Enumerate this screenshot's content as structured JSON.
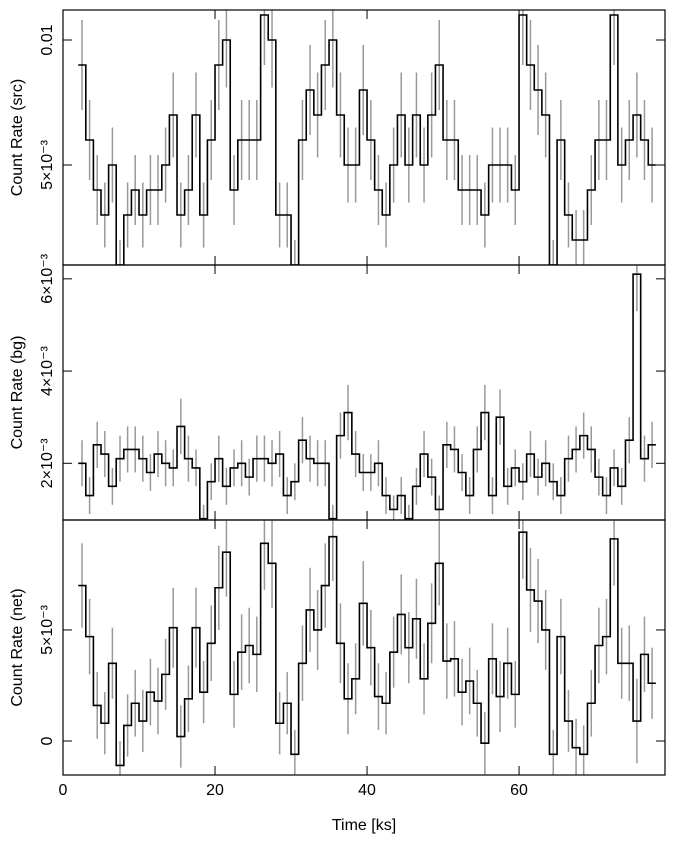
{
  "chart_data": [
    {
      "type": "step",
      "ylabel": "Count Rate (src)",
      "xlim": [
        0,
        79.2
      ],
      "xticks": [
        0,
        20,
        40,
        60
      ],
      "ylim": [
        0.001,
        0.0112
      ],
      "yticks": [
        {
          "value": 0.005,
          "label": "5×10⁻³"
        },
        0.01
      ],
      "line_color": "#000000",
      "error_color": "#999999",
      "x": [
        2.5,
        3.5,
        4.5,
        5.5,
        6.5,
        7.5,
        8.5,
        9.5,
        10.5,
        11.5,
        12.5,
        13.5,
        14.5,
        15.5,
        16.5,
        17.5,
        18.5,
        19.5,
        20.5,
        21.5,
        22.5,
        23.5,
        24.5,
        25.5,
        26.5,
        27.5,
        28.5,
        29.5,
        30.5,
        31.5,
        32.5,
        33.5,
        34.5,
        35.5,
        36.5,
        37.5,
        38.5,
        39.5,
        40.5,
        41.5,
        42.5,
        43.5,
        44.5,
        45.5,
        46.5,
        47.5,
        48.5,
        49.5,
        50.5,
        51.5,
        52.5,
        53.5,
        54.5,
        55.5,
        56.5,
        57.5,
        58.5,
        59.5,
        60.5,
        61.5,
        62.5,
        63.5,
        64.5,
        65.5,
        66.5,
        67.5,
        68.5,
        69.5,
        70.5,
        71.5,
        72.5,
        73.5,
        74.5,
        75.5,
        76.5,
        77.5
      ],
      "values": [
        0.009,
        0.006,
        0.004,
        0.003,
        0.005,
        0.001,
        0.003,
        0.004,
        0.003,
        0.004,
        0.004,
        0.005,
        0.007,
        0.003,
        0.004,
        0.007,
        0.003,
        0.006,
        0.009,
        0.01,
        0.004,
        0.006,
        0.006,
        0.006,
        0.011,
        0.01,
        0.003,
        0.003,
        0.001,
        0.006,
        0.008,
        0.007,
        0.009,
        0.01,
        0.007,
        0.005,
        0.005,
        0.008,
        0.006,
        0.004,
        0.003,
        0.005,
        0.007,
        0.005,
        0.007,
        0.005,
        0.007,
        0.009,
        0.006,
        0.006,
        0.004,
        0.004,
        0.004,
        0.003,
        0.005,
        0.005,
        0.005,
        0.004,
        0.011,
        0.009,
        0.008,
        0.007,
        0.001,
        0.006,
        0.003,
        0.002,
        0.002,
        0.004,
        0.006,
        0.006,
        0.011,
        0.005,
        0.006,
        0.007,
        0.006,
        0.005
      ],
      "errors": [
        0.0018,
        0.0016,
        0.0014,
        0.0013,
        0.0015,
        0.001,
        0.0013,
        0.0014,
        0.0013,
        0.0014,
        0.0014,
        0.0015,
        0.0017,
        0.0013,
        0.0014,
        0.0017,
        0.0013,
        0.0016,
        0.0018,
        0.0019,
        0.0014,
        0.0016,
        0.0016,
        0.0016,
        0.002,
        0.0019,
        0.0013,
        0.0013,
        0.001,
        0.0016,
        0.0018,
        0.0017,
        0.0018,
        0.0019,
        0.0017,
        0.0015,
        0.0015,
        0.0018,
        0.0016,
        0.0014,
        0.0013,
        0.0015,
        0.0017,
        0.0015,
        0.0017,
        0.0015,
        0.0017,
        0.0018,
        0.0016,
        0.0016,
        0.0014,
        0.0014,
        0.0014,
        0.0013,
        0.0015,
        0.0015,
        0.0015,
        0.0014,
        0.002,
        0.0018,
        0.0018,
        0.0017,
        0.001,
        0.0016,
        0.0013,
        0.0012,
        0.0012,
        0.0014,
        0.0016,
        0.0016,
        0.002,
        0.0015,
        0.0016,
        0.0017,
        0.0016,
        0.0015
      ]
    },
    {
      "type": "step",
      "ylabel": "Count Rate (bg)",
      "xlim": [
        0,
        79.2
      ],
      "xticks": [
        0,
        20,
        40,
        60
      ],
      "ylim": [
        0.00077,
        0.0063
      ],
      "yticks": [
        {
          "value": 0.002,
          "label": "2×10⁻³"
        },
        {
          "value": 0.004,
          "label": "4×10⁻³"
        },
        {
          "value": 0.006,
          "label": "6×10⁻³"
        }
      ],
      "line_color": "#000000",
      "error_color": "#999999",
      "x": [
        2.5,
        3.5,
        4.5,
        5.5,
        6.5,
        7.5,
        8.5,
        9.5,
        10.5,
        11.5,
        12.5,
        13.5,
        14.5,
        15.5,
        16.5,
        17.5,
        18.5,
        19.5,
        20.5,
        21.5,
        22.5,
        23.5,
        24.5,
        25.5,
        26.5,
        27.5,
        28.5,
        29.5,
        30.5,
        31.5,
        32.5,
        33.5,
        34.5,
        35.5,
        36.5,
        37.5,
        38.5,
        39.5,
        40.5,
        41.5,
        42.5,
        43.5,
        44.5,
        45.5,
        46.5,
        47.5,
        48.5,
        49.5,
        50.5,
        51.5,
        52.5,
        53.5,
        54.5,
        55.5,
        56.5,
        57.5,
        58.5,
        59.5,
        60.5,
        61.5,
        62.5,
        63.5,
        64.5,
        65.5,
        66.5,
        67.5,
        68.5,
        69.5,
        70.5,
        71.5,
        72.5,
        73.5,
        74.5,
        75.5,
        76.5,
        77.5
      ],
      "values": [
        0.002,
        0.0013,
        0.0024,
        0.0022,
        0.0015,
        0.0021,
        0.0023,
        0.0023,
        0.0021,
        0.0018,
        0.0022,
        0.002,
        0.0019,
        0.0028,
        0.0021,
        0.0019,
        0.0008,
        0.0016,
        0.0021,
        0.0015,
        0.0019,
        0.002,
        0.0017,
        0.0021,
        0.0021,
        0.002,
        0.0022,
        0.0013,
        0.0016,
        0.0025,
        0.0021,
        0.002,
        0.002,
        0.0008,
        0.0026,
        0.0031,
        0.0022,
        0.0018,
        0.0018,
        0.002,
        0.0013,
        0.001,
        0.0013,
        0.0008,
        0.0015,
        0.0022,
        0.0017,
        0.001,
        0.0024,
        0.0023,
        0.0018,
        0.0013,
        0.0023,
        0.0031,
        0.0013,
        0.003,
        0.0015,
        0.0019,
        0.0016,
        0.0022,
        0.0017,
        0.002,
        0.0016,
        0.0013,
        0.0021,
        0.0023,
        0.0026,
        0.0023,
        0.0017,
        0.0013,
        0.0019,
        0.0015,
        0.0025,
        0.0061,
        0.0021,
        0.0024
      ],
      "errors": [
        0.0005,
        0.0004,
        0.0005,
        0.0005,
        0.0004,
        0.0005,
        0.0005,
        0.0005,
        0.0005,
        0.0004,
        0.0005,
        0.0005,
        0.0004,
        0.0006,
        0.0005,
        0.0004,
        0.0003,
        0.0004,
        0.0005,
        0.0004,
        0.0004,
        0.0005,
        0.0004,
        0.0005,
        0.0005,
        0.0005,
        0.0005,
        0.0004,
        0.0004,
        0.0005,
        0.0005,
        0.0005,
        0.0005,
        0.0003,
        0.0005,
        0.0006,
        0.0005,
        0.0004,
        0.0004,
        0.0005,
        0.0004,
        0.0003,
        0.0004,
        0.0003,
        0.0004,
        0.0005,
        0.0004,
        0.0003,
        0.0005,
        0.0005,
        0.0004,
        0.0004,
        0.0005,
        0.0006,
        0.0004,
        0.0006,
        0.0004,
        0.0004,
        0.0004,
        0.0005,
        0.0004,
        0.0005,
        0.0004,
        0.0004,
        0.0005,
        0.0005,
        0.0005,
        0.0005,
        0.0004,
        0.0004,
        0.0004,
        0.0004,
        0.0005,
        0.0008,
        0.0005,
        0.0005
      ]
    },
    {
      "type": "step",
      "ylabel": "Count Rate (net)",
      "xlabel": "Time [ks]",
      "xlim": [
        0,
        79.2
      ],
      "xticks": [
        0,
        20,
        40,
        60
      ],
      "ylim": [
        -0.00153,
        0.00995
      ],
      "yticks": [
        0,
        {
          "value": 0.005,
          "label": "5×10⁻³"
        }
      ],
      "line_color": "#000000",
      "error_color": "#999999",
      "x": [
        2.5,
        3.5,
        4.5,
        5.5,
        6.5,
        7.5,
        8.5,
        9.5,
        10.5,
        11.5,
        12.5,
        13.5,
        14.5,
        15.5,
        16.5,
        17.5,
        18.5,
        19.5,
        20.5,
        21.5,
        22.5,
        23.5,
        24.5,
        25.5,
        26.5,
        27.5,
        28.5,
        29.5,
        30.5,
        31.5,
        32.5,
        33.5,
        34.5,
        35.5,
        36.5,
        37.5,
        38.5,
        39.5,
        40.5,
        41.5,
        42.5,
        43.5,
        44.5,
        45.5,
        46.5,
        47.5,
        48.5,
        49.5,
        50.5,
        51.5,
        52.5,
        53.5,
        54.5,
        55.5,
        56.5,
        57.5,
        58.5,
        59.5,
        60.5,
        61.5,
        62.5,
        63.5,
        64.5,
        65.5,
        66.5,
        67.5,
        68.5,
        69.5,
        70.5,
        71.5,
        72.5,
        73.5,
        74.5,
        75.5,
        76.5,
        77.5
      ],
      "values": [
        0.007,
        0.0047,
        0.0016,
        0.0008,
        0.0035,
        -0.0011,
        0.0007,
        0.0017,
        0.0009,
        0.0022,
        0.0018,
        0.003,
        0.0051,
        0.0002,
        0.0019,
        0.0051,
        0.0022,
        0.0044,
        0.0069,
        0.0085,
        0.0021,
        0.004,
        0.0043,
        0.0039,
        0.0089,
        0.008,
        0.0008,
        0.0017,
        -0.0006,
        0.0035,
        0.0059,
        0.005,
        0.007,
        0.0092,
        0.0044,
        0.0019,
        0.0028,
        0.0062,
        0.0042,
        0.002,
        0.0017,
        0.004,
        0.0057,
        0.0042,
        0.0055,
        0.0028,
        0.0053,
        0.008,
        0.0036,
        0.0037,
        0.0022,
        0.0027,
        0.0017,
        -0.0001,
        0.0037,
        0.002,
        0.0035,
        0.0021,
        0.0094,
        0.0068,
        0.0063,
        0.005,
        -0.0006,
        0.0047,
        0.0009,
        -0.0003,
        -0.0006,
        0.0017,
        0.0043,
        0.0047,
        0.0091,
        0.0035,
        0.0035,
        0.0009,
        0.0039,
        0.0026
      ],
      "errors": [
        0.0019,
        0.0017,
        0.0015,
        0.0014,
        0.0016,
        0.0011,
        0.0014,
        0.0015,
        0.0014,
        0.0015,
        0.0015,
        0.0016,
        0.0018,
        0.0014,
        0.0015,
        0.0018,
        0.0014,
        0.0017,
        0.0019,
        0.002,
        0.0015,
        0.0017,
        0.0017,
        0.0017,
        0.0021,
        0.002,
        0.0014,
        0.0014,
        0.0011,
        0.0017,
        0.0019,
        0.0018,
        0.0019,
        0.002,
        0.0018,
        0.0016,
        0.0016,
        0.0019,
        0.0017,
        0.0015,
        0.0014,
        0.0016,
        0.0018,
        0.0016,
        0.0018,
        0.0016,
        0.0018,
        0.0019,
        0.0017,
        0.0017,
        0.0015,
        0.0015,
        0.0015,
        0.0014,
        0.0016,
        0.0016,
        0.0016,
        0.0015,
        0.0021,
        0.0019,
        0.0019,
        0.0018,
        0.0011,
        0.0017,
        0.0014,
        0.0013,
        0.0013,
        0.0015,
        0.0017,
        0.0017,
        0.0021,
        0.0016,
        0.0017,
        0.0019,
        0.0017,
        0.0016
      ]
    }
  ]
}
